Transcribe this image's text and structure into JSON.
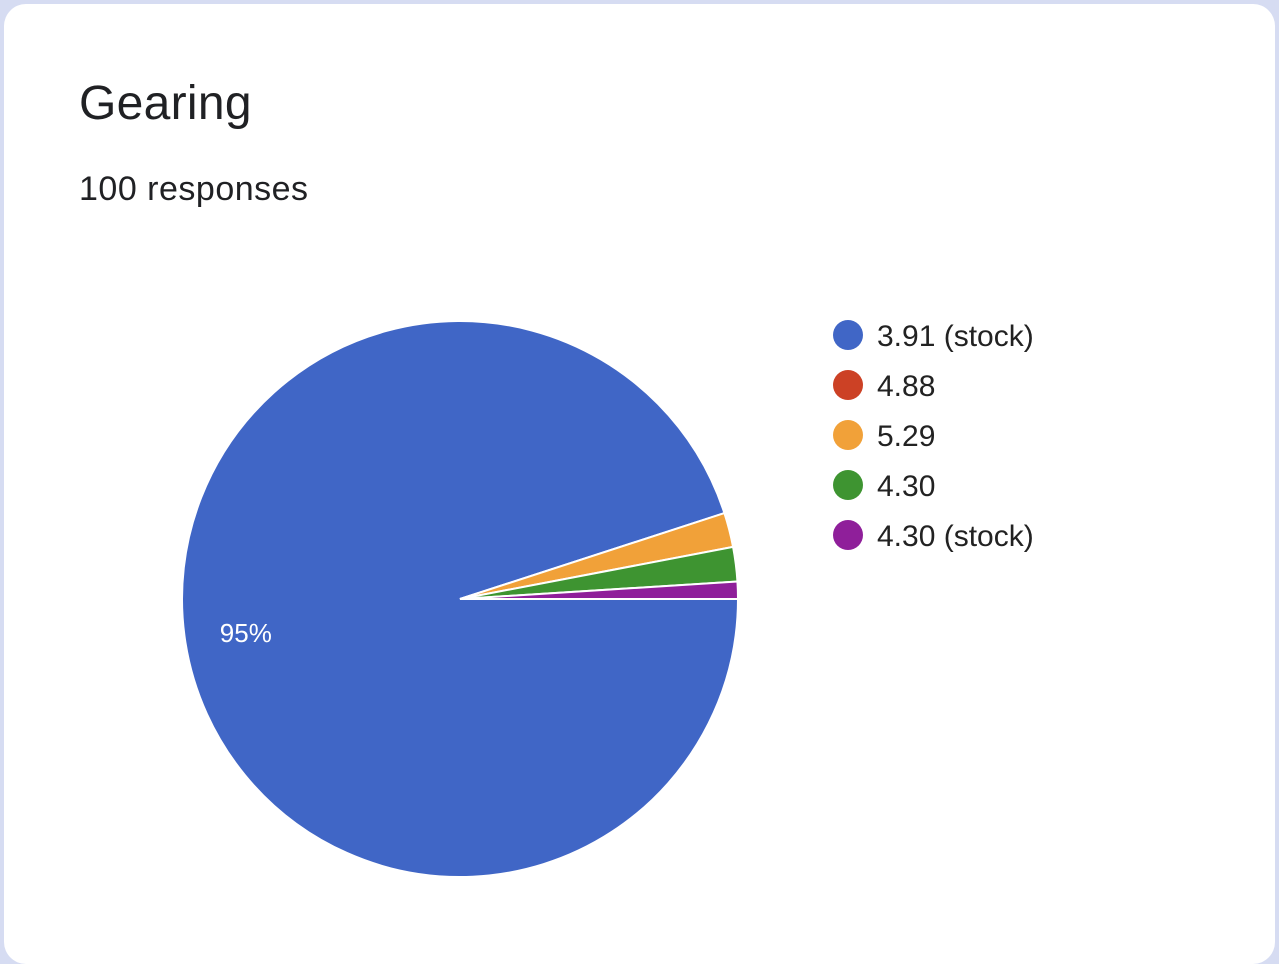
{
  "header": {
    "title": "Gearing",
    "subtitle": "100 responses"
  },
  "chart_data": {
    "type": "pie",
    "title": "Gearing",
    "subtitle": "100 responses",
    "total_responses": 100,
    "legend_position": "right",
    "slices": [
      {
        "label": "3.91 (stock)",
        "value": 95,
        "percent_label": "95%",
        "color": "#4066c6"
      },
      {
        "label": "4.88",
        "value": 0,
        "percent_label": "",
        "color": "#cc4125"
      },
      {
        "label": "5.29",
        "value": 2,
        "percent_label": "",
        "color": "#f1a139"
      },
      {
        "label": "4.30",
        "value": 2,
        "percent_label": "",
        "color": "#3e9431"
      },
      {
        "label": "4.30 (stock)",
        "value": 1,
        "percent_label": "",
        "color": "#8f1f9a"
      }
    ]
  }
}
